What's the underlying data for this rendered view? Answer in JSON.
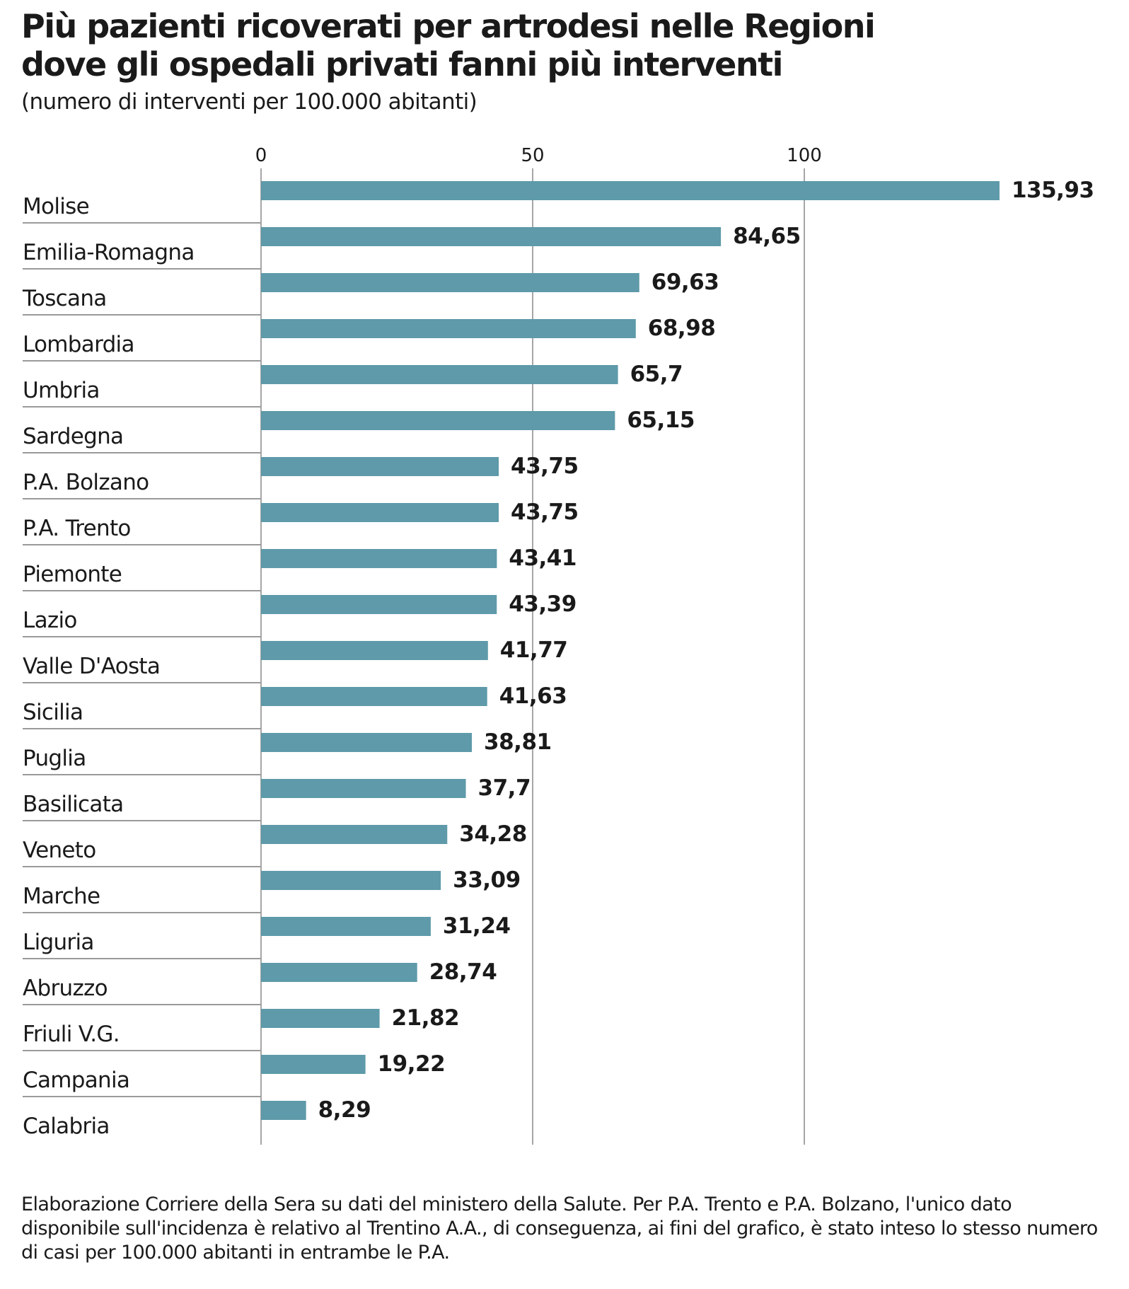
{
  "title_line1": "Più pazienti ricoverati per artrodesi nelle Regioni",
  "title_line2": "dove gli ospedali privati fanni più interventi",
  "subtitle": "(numero di interventi per 100.000 abitanti)",
  "source_note": "Elaborazione Corriere della Sera su dati del ministero della Salute. Per P.A. Trento e P.A. Bolzano, l'unico dato disponibile sull'incidenza è relativo al Trentino A.A., di conseguenza, ai fini del grafico, è stato inteso lo stesso numero di casi per 100.000 abitanti in entrambe le P.A.",
  "colors": {
    "bar": "#5e9aa9",
    "grid": "#888888",
    "separator": "#9a9a9a",
    "text": "#1a1a1a"
  },
  "chart_data": {
    "type": "bar",
    "orientation": "horizontal",
    "xlim": [
      0,
      140
    ],
    "ticks": [
      {
        "value": 0,
        "label": "0"
      },
      {
        "value": 50,
        "label": "50"
      },
      {
        "value": 100,
        "label": "100"
      }
    ],
    "grid": true,
    "categories": [
      "Molise",
      "Emilia-Romagna",
      "Toscana",
      "Lombardia",
      "Umbria",
      "Sardegna",
      "P.A. Bolzano",
      "P.A. Trento",
      "Piemonte",
      "Lazio",
      "Valle D'Aosta",
      "Sicilia",
      "Puglia",
      "Basilicata",
      "Veneto",
      "Marche",
      "Liguria",
      "Abruzzo",
      "Friuli V.G.",
      "Campania",
      "Calabria"
    ],
    "values": [
      135.93,
      84.65,
      69.63,
      68.98,
      65.7,
      65.15,
      43.75,
      43.75,
      43.41,
      43.39,
      41.77,
      41.63,
      38.81,
      37.7,
      34.28,
      33.09,
      31.24,
      28.74,
      21.82,
      19.22,
      8.29
    ],
    "value_labels": [
      "135,93",
      "84,65",
      "69,63",
      "68,98",
      "65,7",
      "65,15",
      "43,75",
      "43,75",
      "43,41",
      "43,39",
      "41,77",
      "41,63",
      "38,81",
      "37,7",
      "34,28",
      "33,09",
      "31,24",
      "28,74",
      "21,82",
      "19,22",
      "8,29"
    ]
  }
}
